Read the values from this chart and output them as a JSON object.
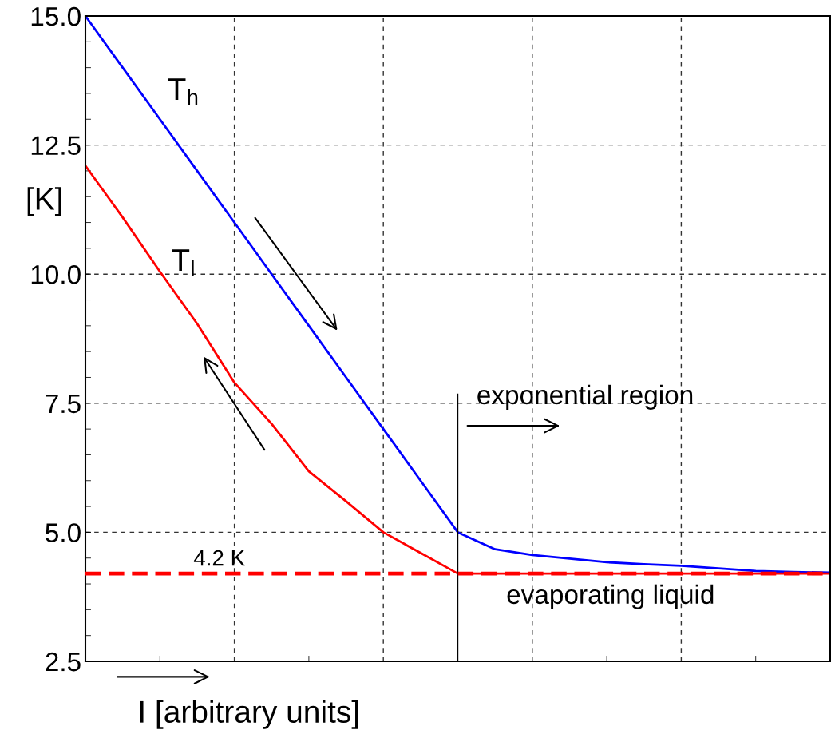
{
  "chart_data": {
    "type": "line",
    "xlabel": "I [arbitrary units]",
    "ylabel": "[K]",
    "categories": [
      null,
      null,
      null,
      null,
      null,
      null,
      null,
      null,
      null,
      null,
      null,
      null,
      null,
      null,
      null,
      null,
      null,
      null,
      null,
      null,
      null
    ],
    "ylim": [
      2.5,
      15
    ],
    "yticks": [
      {
        "value": 2.5,
        "label": "2.5"
      },
      {
        "value": 5,
        "label": "5.0"
      },
      {
        "value": 7.5,
        "label": "7.5"
      },
      {
        "value": 10,
        "label": "10.0"
      },
      {
        "value": 12.5,
        "label": "12.5"
      },
      {
        "value": 15,
        "label": "15.0"
      }
    ],
    "grid": true,
    "line_style": "solid",
    "series": [
      {
        "color": "#0000ff",
        "values": [
          15,
          14,
          13,
          12,
          11,
          10,
          9,
          8,
          7,
          6,
          5,
          4.67,
          4.56,
          4.49,
          4.42,
          4.38,
          4.35,
          4.3,
          4.25,
          4.23,
          4.22
        ]
      },
      {
        "color": "#ff0000",
        "values": [
          12.1,
          11.1,
          10.05,
          9.04,
          7.9,
          7.1,
          6.18,
          5.6,
          5.0,
          4.6,
          4.2,
          4.2,
          4.2,
          4.2,
          4.2,
          4.2,
          4.2,
          4.2,
          4.2,
          4.2,
          4.2
        ]
      }
    ],
    "ref_lines": [
      {
        "axis": "y",
        "value": 4.2,
        "label": "4.2 K",
        "color": "#ff0000",
        "line_style": "dashed"
      }
    ],
    "annotations": [
      "T$_{h}$",
      "T$_{l}$",
      "exponential region",
      "evaporating liquid"
    ]
  }
}
